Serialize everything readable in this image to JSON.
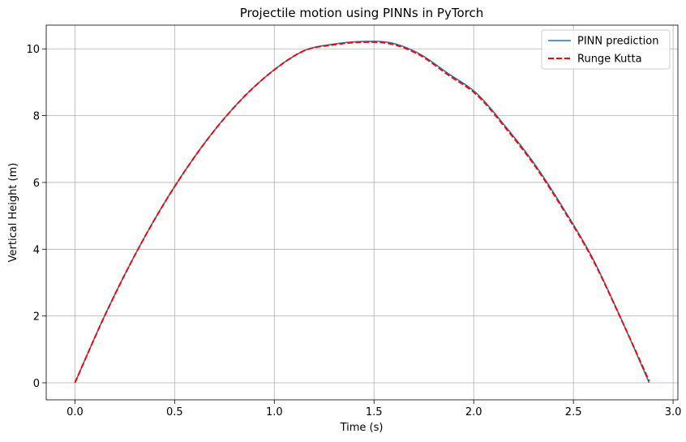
{
  "chart_data": {
    "type": "line",
    "title": "Projectile motion using PINNs in PyTorch",
    "xlabel": "Time (s)",
    "ylabel": "Vertical Height (m)",
    "xlim": [
      -0.144,
      3.024
    ],
    "ylim": [
      -0.51,
      10.71
    ],
    "xticks": [
      0.0,
      0.5,
      1.0,
      1.5,
      2.0,
      2.5,
      3.0
    ],
    "xtick_labels": [
      "0.0",
      "0.5",
      "1.0",
      "1.5",
      "2.0",
      "2.5",
      "3.0"
    ],
    "yticks": [
      0,
      2,
      4,
      6,
      8,
      10
    ],
    "ytick_labels": [
      "0",
      "2",
      "4",
      "6",
      "8",
      "10"
    ],
    "grid": true,
    "legend_position": "top-right",
    "series": [
      {
        "name": "PINN prediction",
        "color": "#1f77b4",
        "style": "solid",
        "x": [
          0.0,
          0.144,
          0.288,
          0.432,
          0.576,
          0.72,
          0.864,
          1.008,
          1.152,
          1.296,
          1.44,
          1.584,
          1.728,
          1.872,
          2.016,
          2.16,
          2.304,
          2.448,
          2.592,
          2.736,
          2.88
        ],
        "y": [
          0.0,
          1.94,
          3.68,
          5.22,
          6.56,
          7.71,
          8.66,
          9.41,
          9.95,
          10.14,
          10.22,
          10.18,
          9.85,
          9.26,
          8.66,
          7.67,
          6.56,
          5.24,
          3.78,
          1.96,
          0.0
        ]
      },
      {
        "name": "Runge Kutta",
        "color": "#ff0000",
        "style": "dashed",
        "x": [
          0.0,
          0.144,
          0.288,
          0.432,
          0.576,
          0.72,
          0.864,
          1.008,
          1.152,
          1.296,
          1.44,
          1.584,
          1.728,
          1.872,
          2.016,
          2.16,
          2.304,
          2.448,
          2.592,
          2.736,
          2.88
        ],
        "y": [
          0.0,
          1.94,
          3.68,
          5.22,
          6.56,
          7.71,
          8.66,
          9.41,
          9.95,
          10.12,
          10.2,
          10.15,
          9.82,
          9.22,
          8.62,
          7.63,
          6.52,
          5.2,
          3.75,
          1.95,
          0.05
        ]
      }
    ]
  }
}
